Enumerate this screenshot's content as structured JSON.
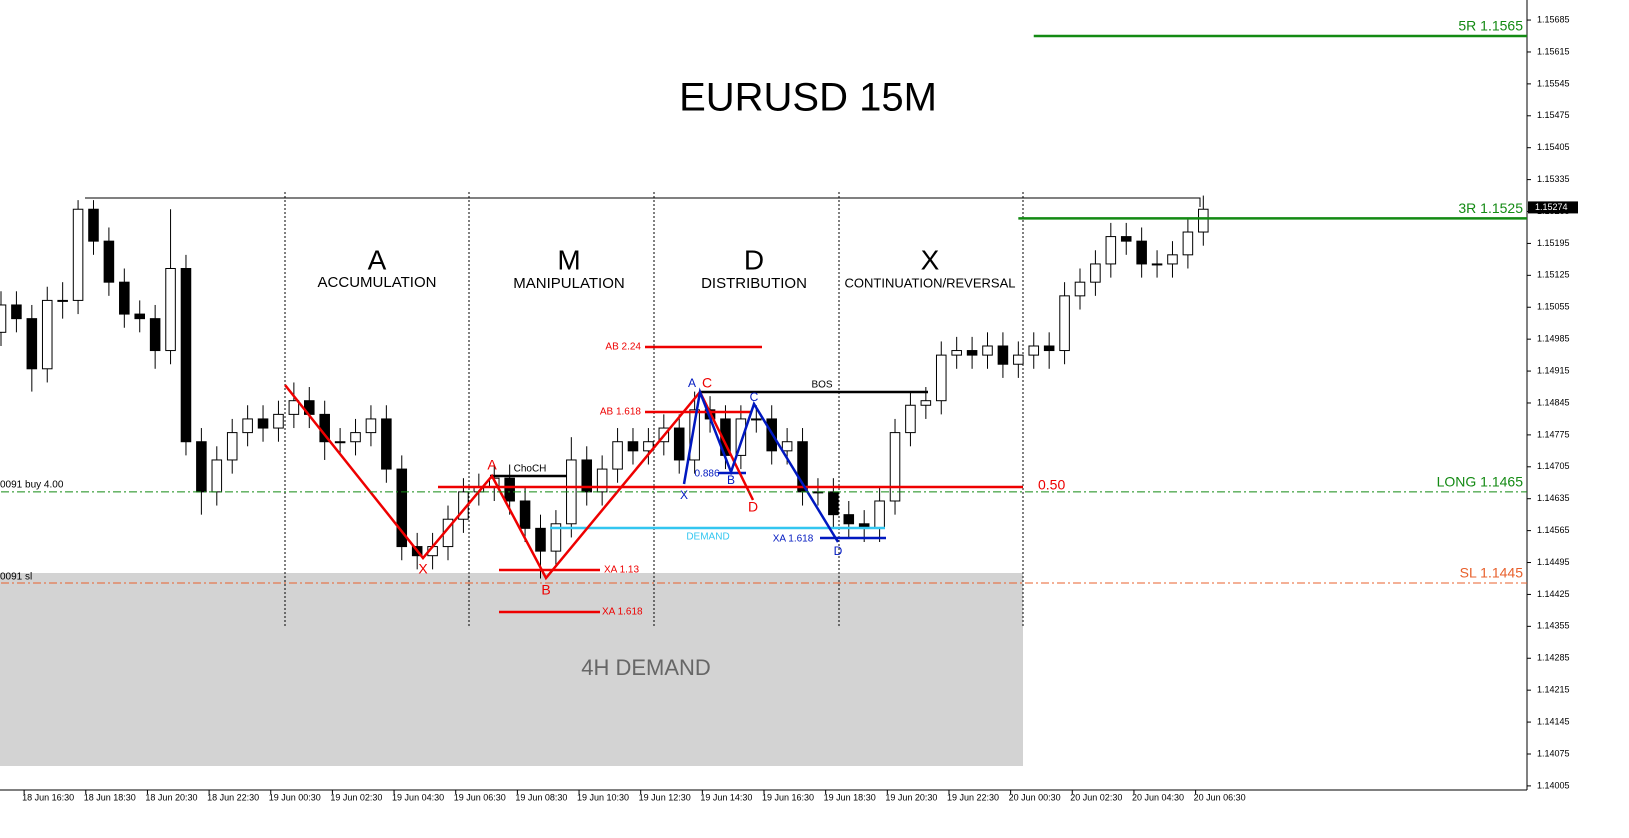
{
  "chart_data": {
    "type": "candlestick",
    "title": "EURUSD 15M",
    "x": [
      0,
      2,
      4,
      6,
      8,
      10,
      12,
      14,
      16,
      18,
      20,
      22,
      24,
      26,
      28,
      30,
      32,
      34,
      36,
      38,
      40,
      42,
      44,
      46,
      48,
      50,
      52,
      54,
      56,
      58,
      60,
      62,
      64,
      66,
      68,
      70,
      72,
      74,
      76,
      78,
      80,
      82,
      84,
      86,
      88,
      90,
      92,
      94,
      96,
      98,
      100,
      102,
      104,
      106,
      108,
      110,
      112,
      114,
      116,
      118,
      120,
      122,
      124,
      126,
      128,
      130,
      132,
      134,
      136,
      138,
      140,
      142,
      144,
      146,
      148,
      150,
      152,
      154,
      156
    ],
    "open": [
      1.15,
      1.1506,
      1.1503,
      1.1492,
      1.1507,
      1.1507,
      1.1527,
      1.152,
      1.1511,
      1.1504,
      1.1503,
      1.1496,
      1.1514,
      1.1476,
      1.1465,
      1.1472,
      1.1478,
      1.1481,
      1.1479,
      1.1482,
      1.1485,
      1.1482,
      1.1476,
      1.1476,
      1.1478,
      1.1481,
      1.147,
      1.1453,
      1.1451,
      1.1453,
      1.1459,
      1.1465,
      1.1466,
      1.1468,
      1.1463,
      1.1457,
      1.1452,
      1.1458,
      1.1472,
      1.1465,
      1.147,
      1.1476,
      1.1474,
      1.1476,
      1.1479,
      1.1472,
      1.1483,
      1.1481,
      1.1473,
      1.1481,
      1.1481,
      1.1474,
      1.1476,
      1.1465,
      1.1465,
      1.146,
      1.1458,
      1.1457,
      1.1463,
      1.1478,
      1.1484,
      1.1485,
      1.1495,
      1.1496,
      1.1495,
      1.1497,
      1.1493,
      1.1495,
      1.1497,
      1.1496,
      1.1508,
      1.1511,
      1.1515,
      1.1521,
      1.152,
      1.1515,
      1.1515,
      1.1517,
      1.1522
    ],
    "high": [
      1.1509,
      1.1509,
      1.1506,
      1.151,
      1.1511,
      1.1529,
      1.1529,
      1.1523,
      1.1514,
      1.1507,
      1.1506,
      1.1527,
      1.1517,
      1.1479,
      1.1475,
      1.1481,
      1.1484,
      1.1484,
      1.1485,
      1.1489,
      1.1488,
      1.1485,
      1.1479,
      1.1481,
      1.1484,
      1.1484,
      1.1473,
      1.1456,
      1.1456,
      1.1462,
      1.1468,
      1.1469,
      1.1471,
      1.1471,
      1.1466,
      1.146,
      1.1461,
      1.1477,
      1.1475,
      1.1473,
      1.1479,
      1.1479,
      1.1479,
      1.1482,
      1.1482,
      1.1487,
      1.1486,
      1.1484,
      1.1484,
      1.1484,
      1.1484,
      1.1479,
      1.1479,
      1.1468,
      1.1468,
      1.1463,
      1.1461,
      1.1466,
      1.1481,
      1.1487,
      1.1488,
      1.1498,
      1.1499,
      1.1499,
      1.15,
      1.15,
      1.1498,
      1.15,
      1.15,
      1.1511,
      1.1514,
      1.1518,
      1.1524,
      1.1524,
      1.1523,
      1.1518,
      1.152,
      1.1525,
      1.153
    ],
    "low": [
      1.1497,
      1.15,
      1.1487,
      1.1489,
      1.1503,
      1.1504,
      1.1517,
      1.1508,
      1.1501,
      1.15,
      1.1492,
      1.1493,
      1.1473,
      1.146,
      1.1462,
      1.1469,
      1.1475,
      1.1476,
      1.1476,
      1.1479,
      1.1479,
      1.1472,
      1.1473,
      1.1473,
      1.1475,
      1.1467,
      1.145,
      1.1448,
      1.1448,
      1.145,
      1.1456,
      1.1462,
      1.1463,
      1.146,
      1.1454,
      1.1446,
      1.1449,
      1.1455,
      1.1462,
      1.1462,
      1.1467,
      1.1471,
      1.1471,
      1.1473,
      1.1469,
      1.1469,
      1.1478,
      1.147,
      1.147,
      1.1478,
      1.1471,
      1.1471,
      1.1462,
      1.1462,
      1.1457,
      1.1455,
      1.1454,
      1.1454,
      1.146,
      1.1475,
      1.1481,
      1.1482,
      1.1492,
      1.1492,
      1.1492,
      1.149,
      1.149,
      1.1492,
      1.1492,
      1.1493,
      1.1505,
      1.1508,
      1.1512,
      1.1517,
      1.1512,
      1.1512,
      1.1512,
      1.1514,
      1.1519
    ],
    "close": [
      1.1506,
      1.1503,
      1.1492,
      1.1507,
      1.1507,
      1.1527,
      1.152,
      1.1511,
      1.1504,
      1.1503,
      1.1496,
      1.1514,
      1.1476,
      1.1465,
      1.1472,
      1.1478,
      1.1481,
      1.1479,
      1.1482,
      1.1485,
      1.1482,
      1.1476,
      1.1476,
      1.1478,
      1.1481,
      1.147,
      1.1453,
      1.1451,
      1.1453,
      1.1459,
      1.1465,
      1.1466,
      1.1468,
      1.1463,
      1.1457,
      1.1452,
      1.1458,
      1.1472,
      1.1465,
      1.147,
      1.1476,
      1.1474,
      1.1476,
      1.1479,
      1.1472,
      1.1483,
      1.1481,
      1.1473,
      1.1481,
      1.1481,
      1.1474,
      1.1476,
      1.1465,
      1.1465,
      1.146,
      1.1458,
      1.1457,
      1.1463,
      1.1478,
      1.1484,
      1.1485,
      1.1495,
      1.1496,
      1.1495,
      1.1497,
      1.1493,
      1.1495,
      1.1497,
      1.1496,
      1.1508,
      1.1511,
      1.1515,
      1.1521,
      1.152,
      1.1515,
      1.1515,
      1.1517,
      1.1522,
      1.1527
    ],
    "xlim": [
      0,
      198
    ],
    "ylim": [
      1.13996,
      1.15729
    ],
    "yticks": [
      1.15685,
      1.15615,
      1.15545,
      1.15475,
      1.15405,
      1.15335,
      1.15265,
      1.15195,
      1.15125,
      1.15055,
      1.14985,
      1.14915,
      1.14845,
      1.14775,
      1.14705,
      1.14635,
      1.14565,
      1.14495,
      1.14425,
      1.14355,
      1.14285,
      1.14215,
      1.14145,
      1.14075,
      1.14005
    ],
    "xticks": [
      {
        "value": 3,
        "label": "18 Jun 16:30"
      },
      {
        "value": 11,
        "label": "18 Jun 18:30"
      },
      {
        "value": 19,
        "label": "18 Jun 20:30"
      },
      {
        "value": 27,
        "label": "18 Jun 22:30"
      },
      {
        "value": 35,
        "label": "19 Jun 00:30"
      },
      {
        "value": 43,
        "label": "19 Jun 02:30"
      },
      {
        "value": 51,
        "label": "19 Jun 04:30"
      },
      {
        "value": 59,
        "label": "19 Jun 06:30"
      },
      {
        "value": 67,
        "label": "19 Jun 08:30"
      },
      {
        "value": 75,
        "label": "19 Jun 10:30"
      },
      {
        "value": 83,
        "label": "19 Jun 12:30"
      },
      {
        "value": 91,
        "label": "19 Jun 14:30"
      },
      {
        "value": 99,
        "label": "19 Jun 16:30"
      },
      {
        "value": 107,
        "label": "19 Jun 18:30"
      },
      {
        "value": 115,
        "label": "19 Jun 20:30"
      },
      {
        "value": 123,
        "label": "19 Jun 22:30"
      },
      {
        "value": 131,
        "label": "20 Jun 00:30"
      },
      {
        "value": 139,
        "label": "20 Jun 02:30"
      },
      {
        "value": 147,
        "label": "20 Jun 04:30"
      },
      {
        "value": 155,
        "label": "20 Jun 06:30"
      }
    ],
    "up_color": "#ffffff",
    "down_color": "#000000",
    "last_price": 1.15274,
    "levels": [
      {
        "label": "5R 1.1565",
        "value": 1.1565,
        "color": "#138a13",
        "from": 134,
        "style": "solid"
      },
      {
        "label": "3R 1.1525",
        "value": 1.1525,
        "color": "#138a13",
        "from": 132,
        "style": "solid"
      },
      {
        "label": "LONG 1.1465",
        "value": 1.1465,
        "color": "#138a13",
        "from": 0,
        "style": "dashdot"
      },
      {
        "label": "SL 1.1445",
        "value": 1.1445,
        "color": "#e8602c",
        "from": 0,
        "style": "dashdot"
      }
    ],
    "annotations": [
      "A",
      "ACCUMULATION",
      "M",
      "MANIPULATION",
      "D",
      "DISTRIBUTION",
      "X",
      "CONTINUATION/REVERSAL",
      "4H DEMAND",
      "0091 buy 4.00",
      "0091 sl",
      "0.50",
      "AB 2.24",
      "AB 1.618",
      "XA 1.13",
      "XA 1.618",
      "ChoCH",
      "BOS",
      "DEMAND",
      "XA 1.618",
      "0.886",
      "X",
      "A",
      "B",
      "C",
      "D",
      "X",
      "A",
      "B",
      "C",
      "D"
    ]
  }
}
